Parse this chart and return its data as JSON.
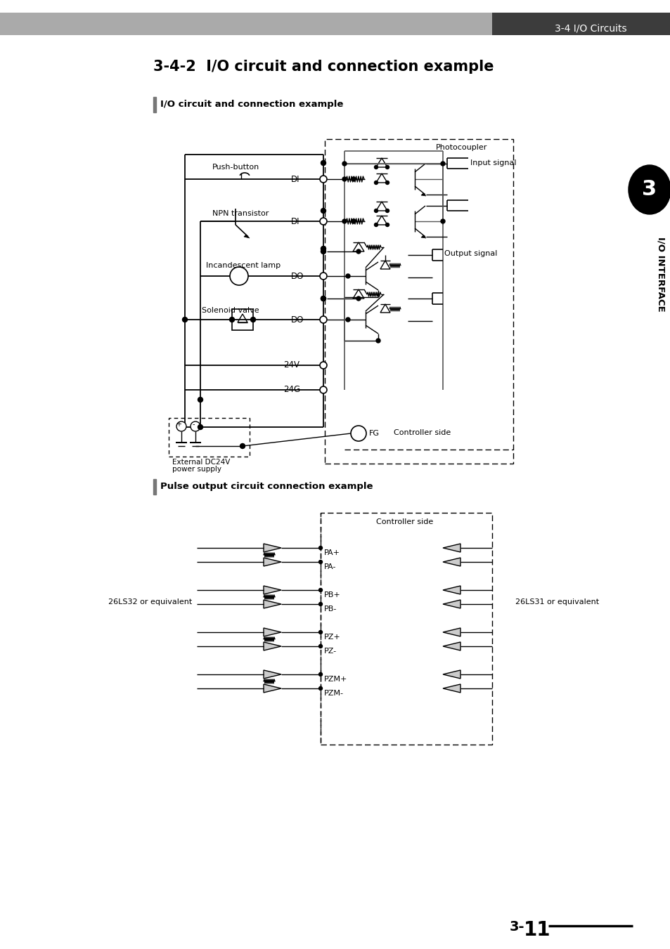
{
  "page_title": "3-4 I/O Circuits",
  "section_title": "3-4-2  I/O circuit and connection example",
  "subsection1": "I/O circuit and connection example",
  "subsection2": "Pulse output circuit connection example",
  "tab_number": "3",
  "tab_text": "I/O INTERFACE",
  "page_number": "3-11",
  "bg_color": "#ffffff",
  "header_bg_left": "#aaaaaa",
  "header_bg_right": "#3c3c3c",
  "header_text_color": "#ffffff",
  "body_text_color": "#000000",
  "gray_line": "#888888"
}
